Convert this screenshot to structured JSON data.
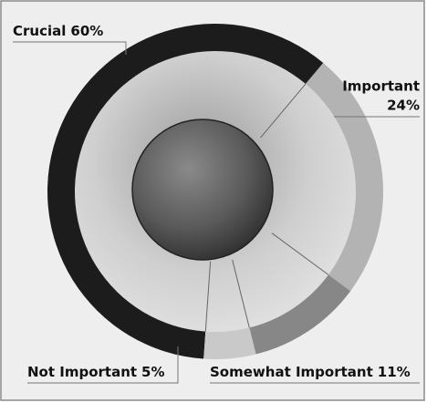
{
  "chart_data": {
    "type": "donut",
    "categories": [
      "Crucial",
      "Important",
      "Somewhat Important",
      "Not Important"
    ],
    "values": [
      60,
      24,
      11,
      5
    ],
    "value_labels": [
      "60%",
      "24%",
      "11%",
      "5%"
    ],
    "colors": [
      "#1c1c1c",
      "#b3b3b3",
      "#878787",
      "#c9c9c9"
    ]
  }
}
